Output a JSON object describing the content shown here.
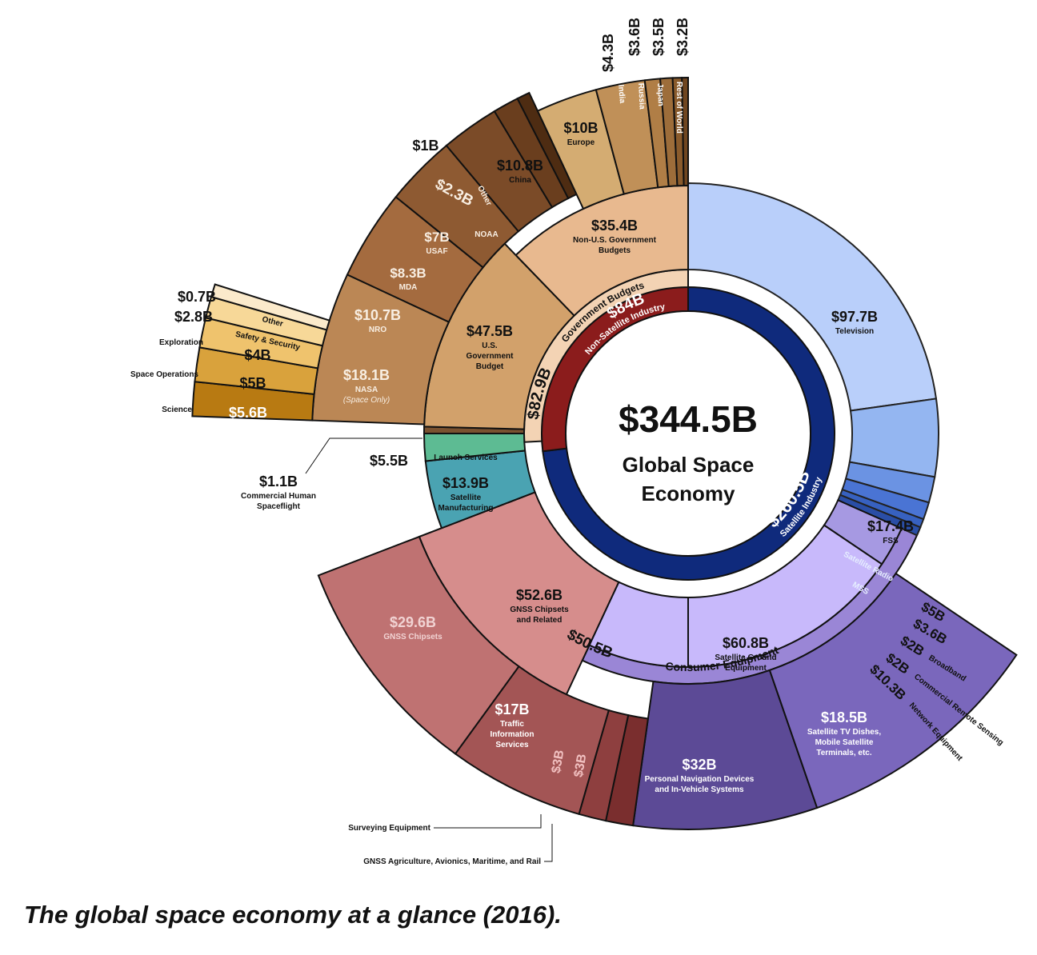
{
  "chart_data": {
    "type": "sunburst",
    "center": {
      "value": "$344.5B",
      "label_line1": "Global Space",
      "label_line2": "Economy"
    },
    "rings": {
      "inner": [
        {
          "id": "satellite",
          "value": "$260.5B",
          "label": "Satellite Industry",
          "color": "#0f2a7c"
        },
        {
          "id": "nonsat",
          "value": "$84B",
          "label": "Non-Satellite Industry",
          "color": "#8b1c1c"
        }
      ],
      "middle": [
        {
          "id": "gov",
          "value": "$82.9B",
          "label": "Government Budgets",
          "color": "#f3d3b4"
        },
        {
          "id": "consumer",
          "value": "$50.5B",
          "label": "Consumer Equipment",
          "color": "#9a86d6"
        }
      ],
      "segments": [
        {
          "id": "television",
          "value": "$97.7B",
          "label": "Television",
          "color": "#b9cffa"
        },
        {
          "id": "fss",
          "value": "$17.4B",
          "label": "FSS",
          "color": "#94b6f1"
        },
        {
          "id": "satradio",
          "value": "$5B",
          "label": "Satellite Radio",
          "color": "#6b93e3"
        },
        {
          "id": "mss",
          "value": "$3.6B",
          "label": "MSS",
          "color": "#4a74d4"
        },
        {
          "id": "broadband",
          "value": "$2B",
          "label": "Broadband",
          "color": "#3761c0"
        },
        {
          "id": "remote",
          "value": "$2B",
          "label": "Commercial Remote Sensing",
          "color": "#2a4ea6"
        },
        {
          "id": "network",
          "value": "$10.3B",
          "label": "Network Equipment",
          "color": "#a699e2"
        },
        {
          "id": "groundeq",
          "value": "$60.8B",
          "label_line1": "Satellite Ground",
          "label_line2": "Equipment",
          "color": "#c8b9fb"
        },
        {
          "id": "gnssrel",
          "value": "$52.6B",
          "label_line1": "GNSS Chipsets",
          "label_line2": "and Related",
          "color": "#d68d8c"
        },
        {
          "id": "satmfg",
          "value": "$13.9B",
          "label_line1": "Satellite",
          "label_line2": "Manufacturing",
          "color": "#4aa3b2"
        },
        {
          "id": "launch",
          "value": "$5.5B",
          "label": "Launch Services",
          "color": "#5dbb93"
        },
        {
          "id": "commhuman",
          "value": "$1.1B",
          "label_line1": "Commercial Human",
          "label_line2": "Spaceflight",
          "color": "#7a5230"
        },
        {
          "id": "usgov",
          "value": "$47.5B",
          "label_line1": "U.S.",
          "label_line2": "Government",
          "label_line3": "Budget",
          "color": "#d2a16b"
        },
        {
          "id": "nonusgov",
          "value": "$35.4B",
          "label_line1": "Non-U.S. Government",
          "label_line2": "Budgets",
          "color": "#e8b98f"
        }
      ],
      "outer": [
        {
          "id": "navdev",
          "value": "$32B",
          "label_line1": "Personal Navigation Devices",
          "label_line2": "and In-Vehicle Systems",
          "color": "#5c4a96"
        },
        {
          "id": "dishes",
          "value": "$18.5B",
          "label_line1": "Satellite TV Dishes,",
          "label_line2": "Mobile Satellite",
          "label_line3": "Terminals, etc.",
          "color": "#7a67bc"
        },
        {
          "id": "gnsschips",
          "value": "$29.6B",
          "label": "GNSS Chipsets",
          "color": "#bf7272"
        },
        {
          "id": "traffic",
          "value": "$17B",
          "label_line1": "Traffic",
          "label_line2": "Information",
          "label_line3": "Services",
          "color": "#a35555"
        },
        {
          "id": "surveying",
          "value": "$3B",
          "label": "Surveying Equipment",
          "color": "#8e3f3f"
        },
        {
          "id": "agri",
          "value": "$3B",
          "label": "GNSS Agriculture, Avionics, Maritime, and Rail",
          "color": "#7a2e2e"
        },
        {
          "id": "nasa",
          "value": "$18.1B",
          "label": "NASA",
          "sublabel": "(Space Only)",
          "color": "#bb8755"
        },
        {
          "id": "nro",
          "value": "$10.7B",
          "label": "NRO",
          "color": "#a46b3f"
        },
        {
          "id": "mda",
          "value": "$8.3B",
          "label": "MDA",
          "color": "#8e5a32"
        },
        {
          "id": "usaf",
          "value": "$7B",
          "label": "USAF",
          "color": "#7b4b28"
        },
        {
          "id": "noaa",
          "value": "$2.3B",
          "label": "NOAA",
          "color": "#6a3e1e"
        },
        {
          "id": "other",
          "value": "$1B",
          "label": "Other",
          "color": "#4e2c12"
        },
        {
          "id": "china",
          "value": "$10.8B",
          "label": "China",
          "color": "#d4ac72"
        },
        {
          "id": "europe",
          "value": "$10B",
          "label": "Europe",
          "color": "#c09058"
        },
        {
          "id": "india",
          "value": "$4.3B",
          "label": "India",
          "color": "#b07e46"
        },
        {
          "id": "russia",
          "value": "$3.6B",
          "label": "Russia",
          "color": "#9d6d3a"
        },
        {
          "id": "japan",
          "value": "$3.5B",
          "label": "Japan",
          "color": "#8a5b2c"
        },
        {
          "id": "rest",
          "value": "$3.2B",
          "label": "Rest of World",
          "color": "#704620"
        }
      ],
      "nasa_breakdown": [
        {
          "id": "science",
          "value": "$5.6B",
          "label": "Science",
          "color": "#b87a12"
        },
        {
          "id": "spaceops",
          "value": "$5B",
          "label": "Space Operations",
          "color": "#d9a23c"
        },
        {
          "id": "exploration",
          "value": "$4B",
          "label": "Exploration",
          "color": "#efc36d"
        },
        {
          "id": "safety",
          "value": "$2.8B",
          "label": "Safety & Security",
          "color": "#f7d898"
        },
        {
          "id": "nasaother",
          "value": "$0.7B",
          "label": "Other",
          "color": "#fbeacb"
        }
      ]
    }
  },
  "caption": "The global space economy at a glance (2016)."
}
